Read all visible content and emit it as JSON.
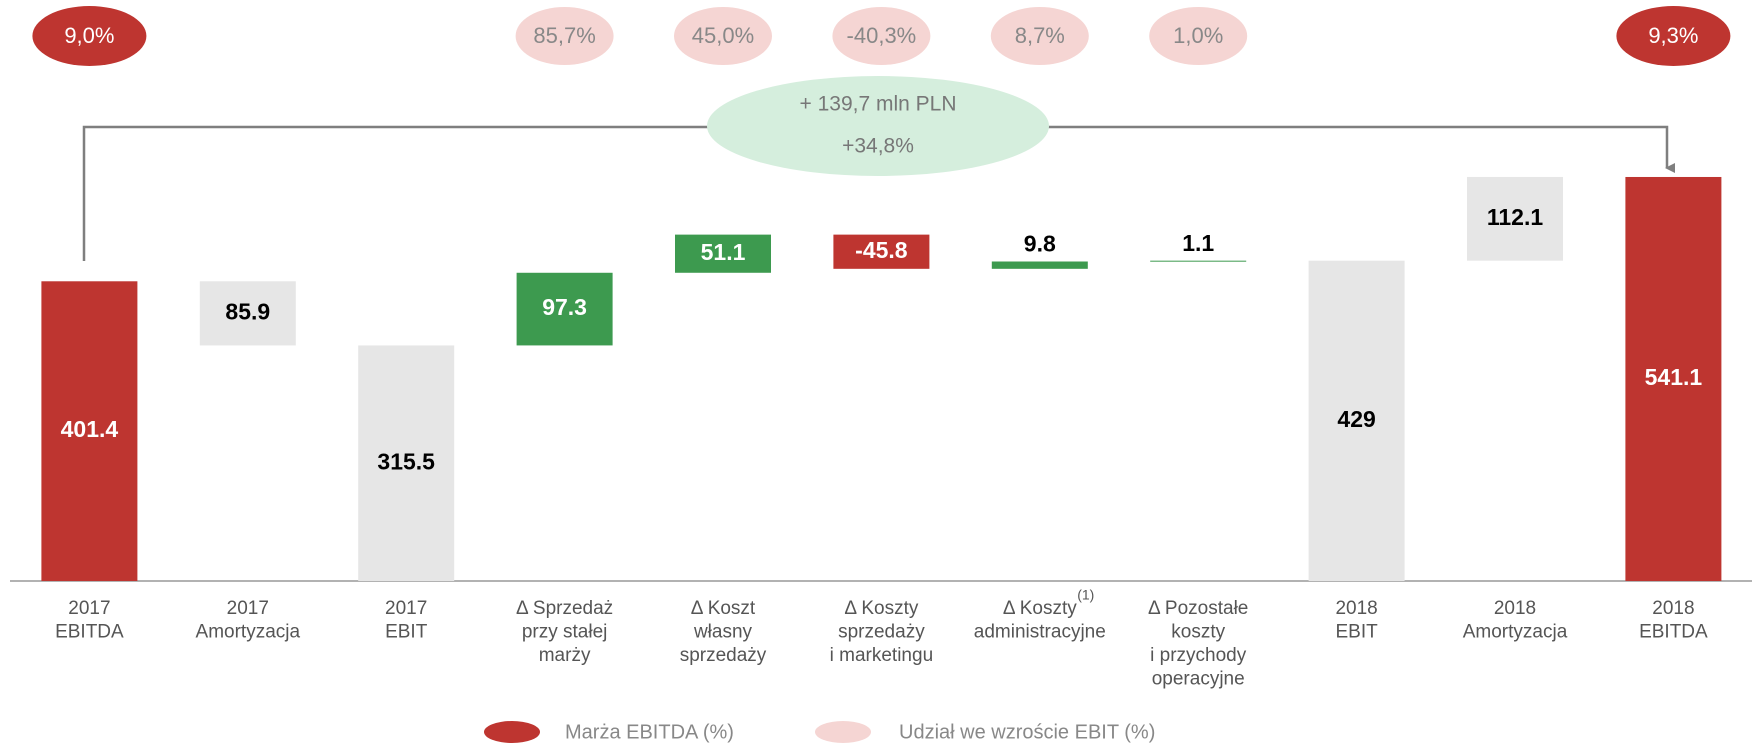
{
  "chart_data": {
    "type": "waterfall",
    "categories": [
      [
        "2017",
        "EBITDA"
      ],
      [
        "2017",
        "Amortyzacja"
      ],
      [
        "2017",
        "EBIT"
      ],
      [
        "Δ Sprzedaż",
        "przy stałej",
        "marży"
      ],
      [
        "Δ Koszt",
        "własny",
        "sprzedaży"
      ],
      [
        "Δ Koszty",
        "sprzedaży",
        "i marketingu"
      ],
      [
        "Δ Koszty",
        "administracyjne"
      ],
      [
        "Δ Pozostałe",
        "koszty",
        "i przychody",
        "operacyjne"
      ],
      [
        "2018",
        "EBIT"
      ],
      [
        "2018",
        "Amortyzacja"
      ],
      [
        "2018",
        "EBITDA"
      ]
    ],
    "category_superscripts": [
      null,
      null,
      null,
      null,
      null,
      null,
      "(1)",
      null,
      null,
      null,
      null
    ],
    "values": [
      401.4,
      85.9,
      315.5,
      97.3,
      51.1,
      -45.8,
      9.8,
      1.1,
      429.0,
      112.1,
      541.1
    ],
    "measures": [
      "total",
      "decrease",
      "total",
      "relative",
      "relative",
      "relative",
      "relative",
      "relative",
      "total",
      "relative",
      "total"
    ],
    "colors": [
      "#be3530",
      "#e6e6e6",
      "#e6e6e6",
      "#3d9a4f",
      "#3d9a4f",
      "#be3530",
      "#3d9a4f",
      "#3d9a4f",
      "#e6e6e6",
      "#e6e6e6",
      "#be3530"
    ],
    "ylim": [
      0,
      600
    ],
    "ebitda_margin": {
      "name": "Marża EBITDA (%)",
      "color": "#be3530",
      "values": [
        9.0,
        null,
        null,
        null,
        null,
        null,
        null,
        null,
        null,
        null,
        9.3
      ],
      "value_labels": [
        "9,0%",
        null,
        null,
        null,
        null,
        null,
        null,
        null,
        null,
        null,
        "9,3%"
      ]
    },
    "growth_share": {
      "name": "Udział we wzroście EBIT (%)",
      "color": "#f5d5d3",
      "values": [
        null,
        null,
        null,
        85.7,
        45.0,
        -40.3,
        8.7,
        1.0,
        null,
        null,
        null
      ],
      "value_labels": [
        null,
        null,
        null,
        "85,7%",
        "45,0%",
        "-40,3%",
        "8,7%",
        "1,0%",
        null,
        null,
        null
      ]
    },
    "annotation": [
      "+ 139,7 mln PLN",
      "+34,8%"
    ]
  }
}
